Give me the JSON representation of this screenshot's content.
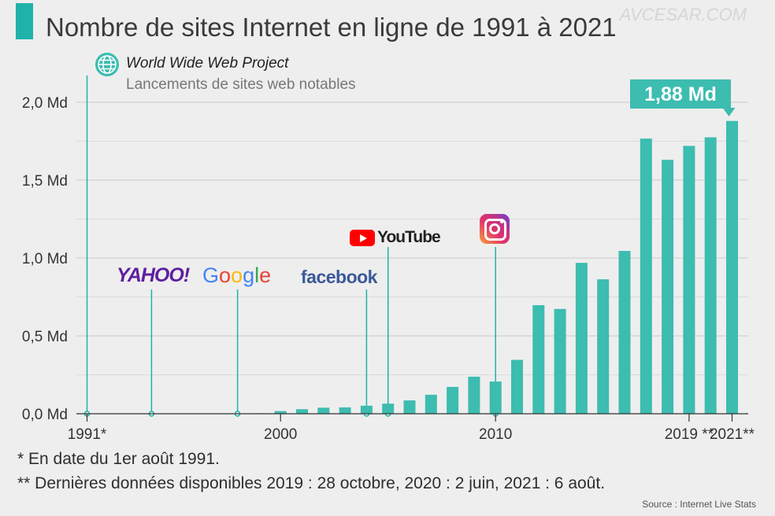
{
  "title": "Nombre de sites Internet en ligne de 1991 à 2021",
  "watermark": "AVCESAR.COM",
  "legend_icon": "globe-icon",
  "accent_color": "#20b2aa",
  "bar_color": "#3dbcb0",
  "chart_data": {
    "type": "bar",
    "title": "Nombre de sites Internet en ligne de 1991 à 2021",
    "x": [
      1991,
      1992,
      1993,
      1994,
      1995,
      1996,
      1997,
      1998,
      1999,
      2000,
      2001,
      2002,
      2003,
      2004,
      2005,
      2006,
      2007,
      2008,
      2009,
      2010,
      2011,
      2012,
      2013,
      2014,
      2015,
      2016,
      2017,
      2018,
      2019,
      2020,
      2021
    ],
    "values": [
      1e-07,
      1e-05,
      0.0001,
      0.003,
      0.023,
      0.26,
      1.1,
      2.4,
      3.2,
      17.1,
      29.3,
      38.8,
      40.9,
      51.6,
      64.8,
      85.5,
      121.9,
      172.3,
      238.0,
      206.9,
      346.0,
      697.1,
      672.9,
      968.9,
      863.1,
      1045.5,
      1766.9,
      1630.3,
      1720,
      1775,
      1880
    ],
    "unit": "millions",
    "ylim": [
      0,
      2000
    ],
    "y_ticks": [
      {
        "value": 0,
        "label": "0,0 Md"
      },
      {
        "value": 500,
        "label": "0,5 Md"
      },
      {
        "value": 1000,
        "label": "1,0 Md"
      },
      {
        "value": 1500,
        "label": "1,5 Md"
      },
      {
        "value": 2000,
        "label": "2,0 Md"
      }
    ],
    "x_ticks": [
      {
        "year": 1991,
        "label": "1991*"
      },
      {
        "year": 2000,
        "label": "2000"
      },
      {
        "year": 2010,
        "label": "2010"
      },
      {
        "year": 2019,
        "label": "2019 **"
      },
      {
        "year": 2021,
        "label": "2021**"
      }
    ],
    "highlight": {
      "year": 2021,
      "label": "1,88 Md"
    },
    "grid": true,
    "legend": "none",
    "launches": [
      {
        "year": 1991,
        "name": "World Wide Web Project"
      },
      {
        "year": 1994,
        "name": "YAHOO!",
        "logo": "yahoo-logo"
      },
      {
        "year": 1998,
        "name": "Google",
        "logo": "google-logo"
      },
      {
        "year": 2004,
        "name": "facebook",
        "logo": "facebook-logo"
      },
      {
        "year": 2005,
        "name": "YouTube",
        "logo": "youtube-logo"
      },
      {
        "year": 2010,
        "name": "Instagram",
        "logo": "instagram-icon"
      }
    ],
    "annotation_subtitle": "Lancements de sites web notables"
  },
  "footnotes": [
    "*   En date du 1er août 1991.",
    "** Dernières données disponibles 2019 : 28 octobre, 2020 : 2 juin, 2021 : 6 août."
  ],
  "source": "Source : Internet Live Stats",
  "google_letters": [
    {
      "ch": "G",
      "color": "#4285f4"
    },
    {
      "ch": "o",
      "color": "#ea4335"
    },
    {
      "ch": "o",
      "color": "#fbbc05"
    },
    {
      "ch": "g",
      "color": "#4285f4"
    },
    {
      "ch": "l",
      "color": "#34a853"
    },
    {
      "ch": "e",
      "color": "#ea4335"
    }
  ]
}
